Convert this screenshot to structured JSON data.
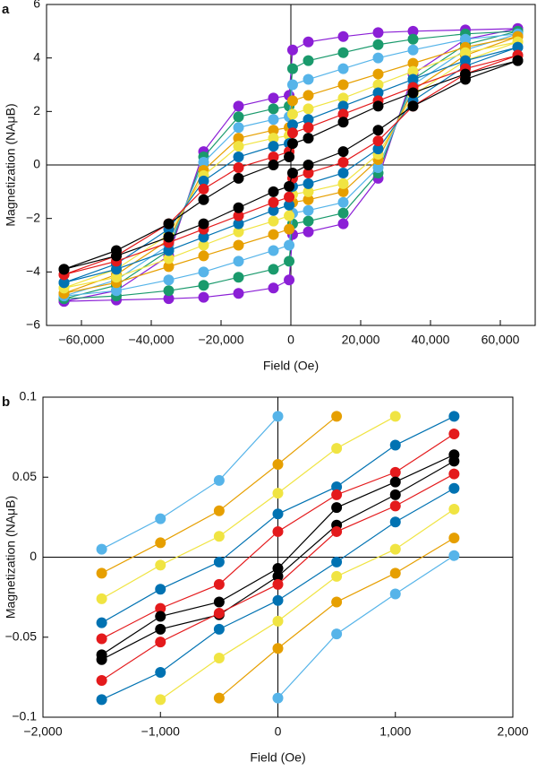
{
  "chart_data": [
    {
      "type": "line",
      "panel": "a",
      "x_label": "Field (Oe)",
      "y_label": "Magnetization (NAμB)",
      "xlim": [
        -70000,
        70000
      ],
      "ylim": [
        -6,
        6
      ],
      "xticks": [
        {
          "value": -60000,
          "label": "−60,000"
        },
        {
          "value": -40000,
          "label": "−40,000"
        },
        {
          "value": -20000,
          "label": "−20,000"
        },
        0,
        {
          "value": 20000,
          "label": "20,000"
        },
        {
          "value": 40000,
          "label": "40,000"
        },
        {
          "value": 60000,
          "label": "60,000"
        }
      ],
      "yticks": [
        {
          "value": -6,
          "label": "−6"
        },
        {
          "value": -4,
          "label": "−4"
        },
        {
          "value": -2,
          "label": "−2"
        },
        0,
        2,
        4,
        6
      ],
      "x": [
        65000,
        50000,
        35000,
        25000,
        15000,
        5000,
        500,
        -500,
        -5000,
        -15000,
        -25000,
        -35000,
        -50000,
        -65000,
        -65000,
        -50000,
        -35000,
        -25000,
        -15000,
        -5000,
        -500,
        500,
        5000,
        15000,
        25000,
        35000,
        50000,
        65000
      ],
      "series": [
        {
          "color": "#8b1fd6",
          "values": [
            5.1,
            5.05,
            5.0,
            4.95,
            4.8,
            4.6,
            4.3,
            2.6,
            2.5,
            2.2,
            0.5,
            -3.4,
            -4.7,
            -5.1,
            -5.1,
            -5.05,
            -5.0,
            -4.95,
            -4.8,
            -4.6,
            -4.3,
            -2.6,
            -2.5,
            -2.2,
            -0.5,
            3.4,
            4.7,
            5.1
          ]
        },
        {
          "color": "#1a9a6c",
          "values": [
            5.0,
            4.9,
            4.7,
            4.5,
            4.2,
            3.9,
            3.6,
            2.2,
            2.1,
            1.8,
            0.3,
            -3.2,
            -4.5,
            -5.0,
            -5.0,
            -4.9,
            -4.7,
            -4.5,
            -4.2,
            -3.9,
            -3.6,
            -2.2,
            -2.1,
            -1.8,
            -0.3,
            3.2,
            4.5,
            5.0
          ]
        },
        {
          "color": "#56b4e9",
          "values": [
            4.9,
            4.7,
            4.3,
            4.0,
            3.6,
            3.2,
            3.0,
            1.8,
            1.7,
            1.4,
            0.1,
            -3.0,
            -4.3,
            -4.9,
            -4.9,
            -4.7,
            -4.3,
            -4.0,
            -3.6,
            -3.2,
            -3.0,
            -1.8,
            -1.7,
            -1.4,
            -0.1,
            3.0,
            4.3,
            4.9
          ]
        },
        {
          "color": "#e69f00",
          "values": [
            4.8,
            4.4,
            3.8,
            3.4,
            3.0,
            2.6,
            2.4,
            1.4,
            1.3,
            1.0,
            -0.2,
            -2.8,
            -4.1,
            -4.8,
            -4.8,
            -4.4,
            -3.8,
            -3.4,
            -3.0,
            -2.6,
            -2.4,
            -1.4,
            -1.3,
            -1.0,
            0.2,
            2.8,
            4.1,
            4.8
          ]
        },
        {
          "color": "#f0e442",
          "values": [
            4.6,
            4.2,
            3.5,
            3.0,
            2.5,
            2.1,
            1.9,
            1.1,
            1.0,
            0.7,
            -0.4,
            -2.6,
            -3.9,
            -4.6,
            -4.6,
            -4.2,
            -3.5,
            -3.0,
            -2.5,
            -2.1,
            -1.9,
            -1.1,
            -1.0,
            -0.7,
            0.4,
            2.6,
            3.9,
            4.6
          ]
        },
        {
          "color": "#0072b2",
          "values": [
            4.4,
            3.9,
            3.2,
            2.7,
            2.2,
            1.7,
            1.5,
            0.8,
            0.7,
            0.3,
            -0.6,
            -2.4,
            -3.7,
            -4.4,
            -4.4,
            -3.9,
            -3.2,
            -2.7,
            -2.2,
            -1.7,
            -1.5,
            -0.8,
            -0.7,
            -0.3,
            0.6,
            2.4,
            3.7,
            4.4
          ]
        },
        {
          "color": "#e41a1c",
          "values": [
            4.1,
            3.6,
            2.9,
            2.4,
            1.9,
            1.4,
            1.2,
            0.5,
            0.3,
            -0.1,
            -0.9,
            -2.2,
            -3.4,
            -4.1,
            -4.1,
            -3.6,
            -2.9,
            -2.4,
            -1.9,
            -1.4,
            -1.2,
            -0.5,
            -0.3,
            0.1,
            0.9,
            2.2,
            3.4,
            4.1
          ]
        },
        {
          "color": "#000000",
          "values": [
            3.9,
            3.4,
            2.7,
            2.2,
            1.6,
            1.0,
            0.8,
            0.3,
            0.0,
            -0.5,
            -1.3,
            -2.2,
            -3.2,
            -3.9,
            -3.9,
            -3.4,
            -2.7,
            -2.2,
            -1.6,
            -1.0,
            -0.8,
            -0.3,
            0.0,
            0.5,
            1.3,
            2.2,
            3.2,
            3.9
          ]
        }
      ]
    },
    {
      "type": "line",
      "panel": "b",
      "x_label": "Field (Oe)",
      "y_label": "Magnetization (NAμB)",
      "xlim": [
        -2000,
        2000
      ],
      "ylim": [
        -0.1,
        0.1
      ],
      "xticks": [
        {
          "value": -2000,
          "label": "−2,000"
        },
        {
          "value": -1000,
          "label": "−1,000"
        },
        0,
        {
          "value": 1000,
          "label": "1,000"
        },
        {
          "value": 2000,
          "label": "2,000"
        }
      ],
      "yticks": [
        {
          "value": -0.1,
          "label": "−0.1"
        },
        {
          "value": -0.05,
          "label": "−0.05"
        },
        0,
        0.05,
        0.1
      ],
      "x": [
        -1500,
        -1000,
        -500,
        0,
        500,
        1000,
        1500
      ],
      "series": [
        {
          "color": "#56b4e9",
          "values": [
            0.005,
            0.024,
            0.048,
            0.088,
            null,
            null,
            null
          ]
        },
        {
          "color": "#e69f00",
          "values": [
            -0.01,
            0.009,
            0.029,
            0.058,
            0.088,
            null,
            null
          ]
        },
        {
          "color": "#f0e442",
          "values": [
            -0.026,
            -0.005,
            0.013,
            0.04,
            0.068,
            0.088,
            null
          ]
        },
        {
          "color": "#0072b2",
          "values": [
            -0.041,
            -0.02,
            -0.003,
            0.027,
            0.044,
            0.07,
            0.088
          ]
        },
        {
          "color": "#e41a1c",
          "values": [
            -0.051,
            -0.032,
            -0.017,
            0.016,
            0.039,
            0.053,
            0.077
          ]
        },
        {
          "color": "#000000",
          "values": [
            -0.061,
            -0.037,
            -0.028,
            -0.007,
            0.031,
            0.047,
            0.064
          ]
        },
        {
          "color": "#000000",
          "values": [
            -0.064,
            -0.045,
            -0.036,
            -0.012,
            0.02,
            0.039,
            0.06
          ]
        },
        {
          "color": "#e41a1c",
          "values": [
            -0.077,
            -0.053,
            -0.035,
            -0.017,
            0.016,
            0.032,
            0.052
          ]
        },
        {
          "color": "#0072b2",
          "values": [
            -0.089,
            -0.072,
            -0.045,
            -0.027,
            -0.003,
            0.022,
            0.043
          ]
        },
        {
          "color": "#f0e442",
          "values": [
            null,
            -0.089,
            -0.063,
            -0.04,
            -0.012,
            0.005,
            0.03
          ]
        },
        {
          "color": "#e69f00",
          "values": [
            null,
            null,
            -0.088,
            -0.057,
            -0.028,
            -0.01,
            0.012
          ]
        },
        {
          "color": "#56b4e9",
          "values": [
            null,
            null,
            null,
            -0.088,
            -0.048,
            -0.023,
            0.001
          ]
        }
      ]
    }
  ]
}
